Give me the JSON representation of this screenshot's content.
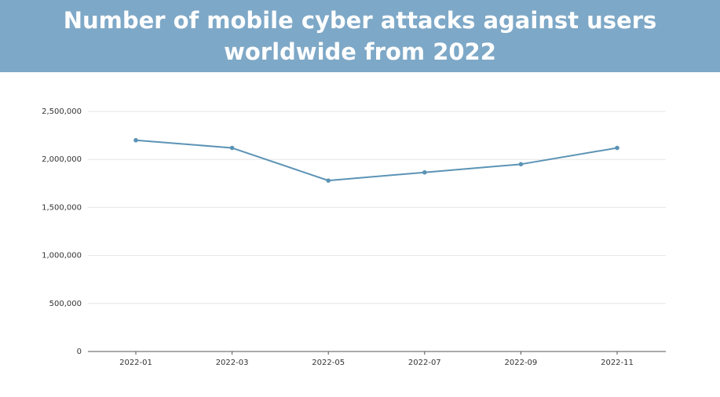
{
  "header": {
    "title": "Number of mobile cyber attacks against users worldwide from 2022",
    "background_color": "#7ea8c7"
  },
  "chart_data": {
    "type": "line",
    "title": "Number of mobile cyber attacks against users worldwide from 2022",
    "xlabel": "",
    "ylabel": "",
    "categories": [
      "2022-01",
      "2022-03",
      "2022-05",
      "2022-07",
      "2022-09",
      "2022-11"
    ],
    "series": [
      {
        "values": [
          2200000,
          2120000,
          1780000,
          1865000,
          1950000,
          2120000
        ],
        "color": "#5b93b5"
      }
    ],
    "ylim": [
      0,
      2500000
    ],
    "yticks": [
      0,
      500000,
      1000000,
      1500000,
      2000000,
      2500000
    ],
    "ytick_labels": [
      "0",
      "500,000",
      "1,000,000",
      "1,500,000",
      "2,000,000",
      "2,500,000"
    ],
    "grid": true,
    "legend": "none"
  }
}
